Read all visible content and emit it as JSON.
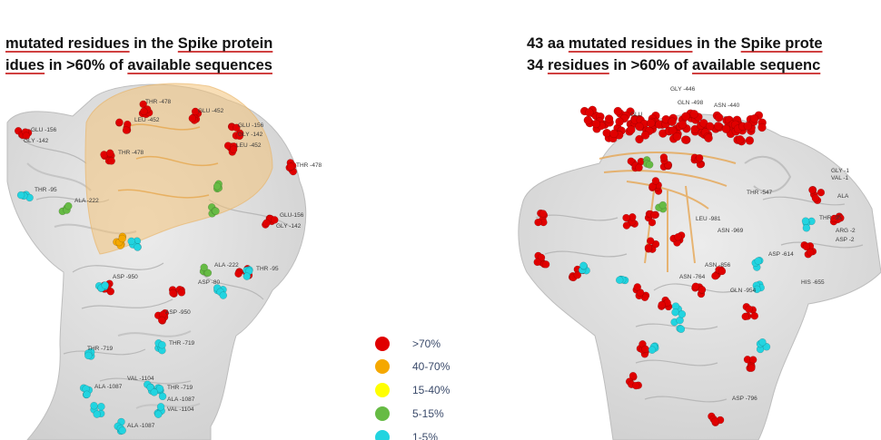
{
  "left": {
    "heading_line1": {
      "pre": "",
      "u1": "mutated residues",
      "mid": " in the ",
      "u2": "Spike protein",
      "post": ""
    },
    "heading_line2": {
      "pre": "",
      "u1": "idues",
      "mid": " in >60% of ",
      "u2": "available sequences",
      "post": ""
    },
    "residue_labels": [
      "THR -478",
      "LEU -452",
      "GLU -452",
      "GLU -156",
      "GLY -142",
      "GLU -156",
      "GLY -142",
      "LEU -452",
      "THR -478",
      "THR -478",
      "THR -95",
      "ALA -222",
      "GLU-156",
      "GLY -142",
      "ASP -950",
      "ALA -222",
      "ASP -80",
      "THR -95",
      "ASP -950",
      "THR -719",
      "THR -719",
      "VAL -1104",
      "ALA -1087",
      "THR -719",
      "ALA -1087",
      "VAL -1104",
      "ALA -1087"
    ]
  },
  "right": {
    "heading_line1": {
      "pre": "43 aa ",
      "u1": "mutated residues",
      "mid": " in the ",
      "u2": "Spike prote",
      "post": ""
    },
    "heading_line2": {
      "pre": "34 ",
      "u1": "residues",
      "mid": " in >60% of ",
      "u2": "available sequenc",
      "post": ""
    },
    "residue_labels": [
      "GLY -446",
      "GLN -498",
      "ASN -440",
      "GLU",
      "THR -547",
      "LEU -981",
      "ASN -969",
      "ASP -614",
      "ASN -856",
      "GLN -954",
      "ASN -764",
      "HIS -655",
      "ASP -796",
      "GLY -1",
      "VAL -1",
      "ALA",
      "THR -95",
      "ARG -2",
      "ASP -2"
    ]
  },
  "legend": {
    "items": [
      {
        "label": ">70%",
        "color": "#e00000"
      },
      {
        "label": "40-70%",
        "color": "#f5a800"
      },
      {
        "label": "15-40%",
        "color": "#ffff00"
      },
      {
        "label": "5-15%",
        "color": "#66bb44"
      },
      {
        "label": "1-5%",
        "color": "#22d4e0"
      }
    ]
  }
}
